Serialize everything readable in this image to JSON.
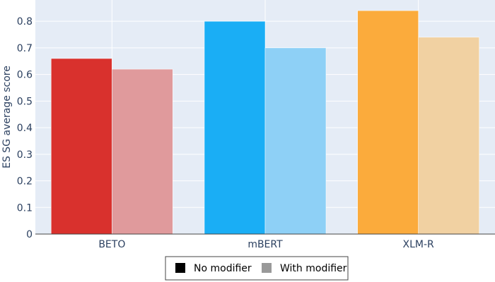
{
  "chart_data": {
    "type": "bar",
    "categories": [
      "BETO",
      "mBERT",
      "XLM-R"
    ],
    "series": [
      {
        "name": "No modifier",
        "values": [
          0.66,
          0.8,
          0.84
        ]
      },
      {
        "name": "With modifier",
        "values": [
          0.62,
          0.7,
          0.74
        ]
      }
    ],
    "bar_colors": [
      {
        "solid": "#d9312d",
        "light": "#e09a9c"
      },
      {
        "solid": "#1aaef5",
        "light": "#8ed0f6"
      },
      {
        "solid": "#fbab3c",
        "light": "#f1d1a2"
      }
    ],
    "legend_swatch_colors": [
      "#000000",
      "#999999"
    ],
    "ylabel": "ES SG average score",
    "xlabel": "",
    "ylim": [
      0,
      0.88
    ],
    "yticks": [
      0,
      0.1,
      0.2,
      0.3,
      0.4,
      0.5,
      0.6,
      0.7,
      0.8
    ],
    "ytick_labels": [
      "0",
      "0.1",
      "0.2",
      "0.3",
      "0.4",
      "0.5",
      "0.6",
      "0.7",
      "0.8"
    ],
    "grid": true,
    "background": "#e5ecf6",
    "legend_position": "bottom-center"
  }
}
